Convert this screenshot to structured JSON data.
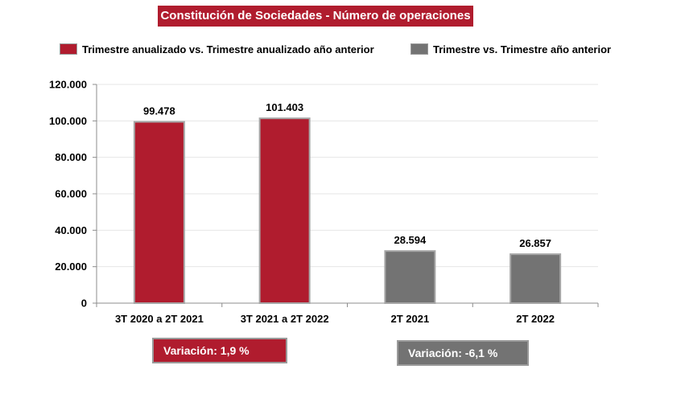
{
  "chart_data": {
    "type": "bar",
    "title": "Constitución de Sociedades - Número de operaciones",
    "xlabel": "",
    "ylabel": "",
    "categories": [
      "3T 2020 a 2T 2021",
      "3T 2021 a 2T 2022",
      "2T 2021",
      "2T 2022"
    ],
    "values": [
      99478,
      101403,
      28594,
      26857
    ],
    "value_labels": [
      "99.478",
      "101.403",
      "28.594",
      "26.857"
    ],
    "series_index": [
      0,
      0,
      1,
      1
    ],
    "series": [
      {
        "name": "Trimestre anualizado vs. Trimestre anualizado año anterior",
        "color": "#b01c2e"
      },
      {
        "name": "Trimestre vs. Trimestre año anterior",
        "color": "#737373"
      }
    ],
    "ylim": [
      0,
      120000
    ],
    "yticks": [
      0,
      20000,
      40000,
      60000,
      80000,
      100000,
      120000
    ],
    "ytick_labels": [
      "0",
      "20.000",
      "40.000",
      "60.000",
      "80.000",
      "100.000",
      "120.000"
    ],
    "grid": true,
    "legend_position": "top",
    "annotations": [
      "Variación:  1,9 %",
      "Variación: -6,1 %"
    ]
  },
  "annotation_colors": [
    "#b01c2e",
    "#737373"
  ]
}
